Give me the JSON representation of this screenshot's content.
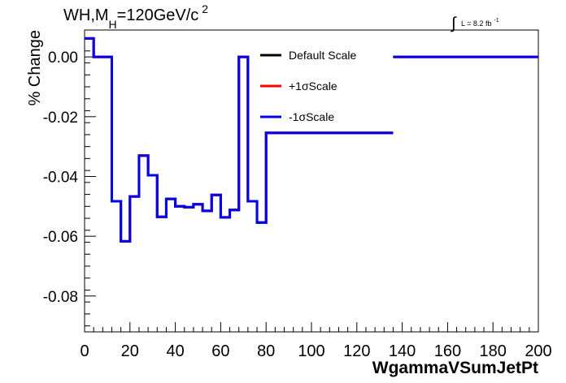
{
  "header": {
    "title_prefix": "WH,M",
    "title_sub": "H",
    "title_mid": "=120GeV/c",
    "title_sup": "2",
    "lumi_integral": "∫",
    "lumi_text": "L = 8.2 fb",
    "lumi_sup": "-1"
  },
  "chart_data": {
    "type": "line",
    "style": "step",
    "title": "WH,MH=120GeV/c2",
    "xlabel": "WgammaVSumJetPt",
    "ylabel": "% Change",
    "xlim": [
      0,
      200
    ],
    "ylim": [
      -0.092,
      0.009
    ],
    "xticks": [
      0,
      20,
      40,
      60,
      80,
      100,
      120,
      140,
      160,
      180,
      200
    ],
    "xtick_labels": [
      "0",
      "20",
      "40",
      "60",
      "80",
      "100",
      "120",
      "140",
      "160",
      "180",
      "200"
    ],
    "yticks": [
      0.0,
      -0.02,
      -0.04,
      -0.06,
      -0.08
    ],
    "ytick_labels": [
      "0.00",
      "-0.02",
      "-0.04",
      "-0.06",
      "-0.08"
    ],
    "legend_position": "top-center",
    "grid": false,
    "bin_edges": [
      0,
      4,
      12,
      16,
      20,
      24,
      28,
      32,
      36,
      40,
      44,
      48,
      52,
      56,
      60,
      64,
      68,
      72,
      76,
      80,
      136,
      200
    ],
    "series": [
      {
        "name": "Default Scale",
        "color": "#000000",
        "visible_on_top": false,
        "values": [
          0.0062,
          0.0,
          -0.0483,
          -0.0617,
          -0.0467,
          -0.033,
          -0.0396,
          -0.0535,
          -0.0475,
          -0.05,
          -0.0503,
          -0.0493,
          -0.0515,
          -0.0462,
          -0.0537,
          -0.0512,
          0.0,
          -0.0483,
          -0.0554,
          -0.0254,
          0.0
        ]
      },
      {
        "name": "+1σScale",
        "color": "#ff0000",
        "visible_on_top": false,
        "values": [
          0.0062,
          0.0,
          -0.0483,
          -0.0617,
          -0.0467,
          -0.033,
          -0.0396,
          -0.0535,
          -0.0475,
          -0.05,
          -0.0503,
          -0.0493,
          -0.0515,
          -0.0462,
          -0.0537,
          -0.0512,
          0.0,
          -0.0483,
          -0.0554,
          -0.0254,
          0.0
        ]
      },
      {
        "name": "-1σScale",
        "color": "#0000ee",
        "visible_on_top": true,
        "values": [
          0.0062,
          0.0,
          -0.0483,
          -0.0617,
          -0.0467,
          -0.033,
          -0.0396,
          -0.0535,
          -0.0475,
          -0.05,
          -0.0503,
          -0.0493,
          -0.0515,
          -0.0462,
          -0.0537,
          -0.0512,
          0.0,
          -0.0483,
          -0.0554,
          -0.0254,
          0.0
        ]
      }
    ]
  }
}
